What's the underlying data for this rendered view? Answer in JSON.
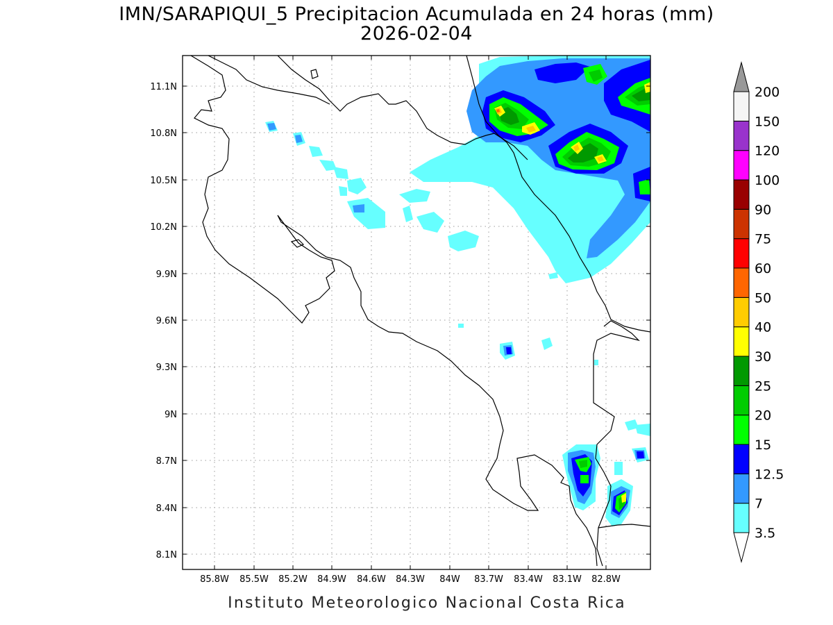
{
  "title": {
    "line1": "IMN/SARAPIQUI_5 Precipitacion Acumulada en 24 horas (mm)",
    "line2": "2026-02-04"
  },
  "footer": "Instituto Meteorologico Nacional Costa Rica",
  "map": {
    "lon_range": [
      -86.0,
      -82.6
    ],
    "lat_range": [
      8.0,
      11.3
    ],
    "x_ticks": [
      "85.8W",
      "85.5W",
      "85.2W",
      "84.9W",
      "84.6W",
      "84.3W",
      "84W",
      "83.7W",
      "83.4W",
      "83.1W",
      "82.8W"
    ],
    "y_ticks": [
      "11.1N",
      "10.8N",
      "10.5N",
      "10.2N",
      "9.9N",
      "9.6N",
      "9.3N",
      "9N",
      "8.7N",
      "8.4N",
      "8.1N"
    ],
    "grid": "dotted"
  },
  "colorbar": {
    "levels": [
      "3.5",
      "7",
      "12.5",
      "15",
      "20",
      "25",
      "30",
      "40",
      "50",
      "60",
      "75",
      "90",
      "100",
      "120",
      "150",
      "200"
    ],
    "colors": [
      "#66ffff",
      "#3399ff",
      "#0000ff",
      "#00ff00",
      "#00cc00",
      "#009900",
      "#ffff00",
      "#ffcc00",
      "#ff6600",
      "#ff0000",
      "#cc3300",
      "#990000",
      "#ff00ff",
      "#9933cc",
      "#f5f5f5"
    ],
    "top_arrow_color": "#999999",
    "bottom_arrow_color": "#ffffff"
  },
  "precip_colors": {
    "c35": "#66ffff",
    "c7": "#3399ff",
    "c125": "#0000ff",
    "c15": "#00ff00",
    "c20": "#00cc00",
    "c25": "#009900",
    "c30": "#ffff00",
    "c40": "#ffcc00",
    "c50": "#ff6600"
  }
}
